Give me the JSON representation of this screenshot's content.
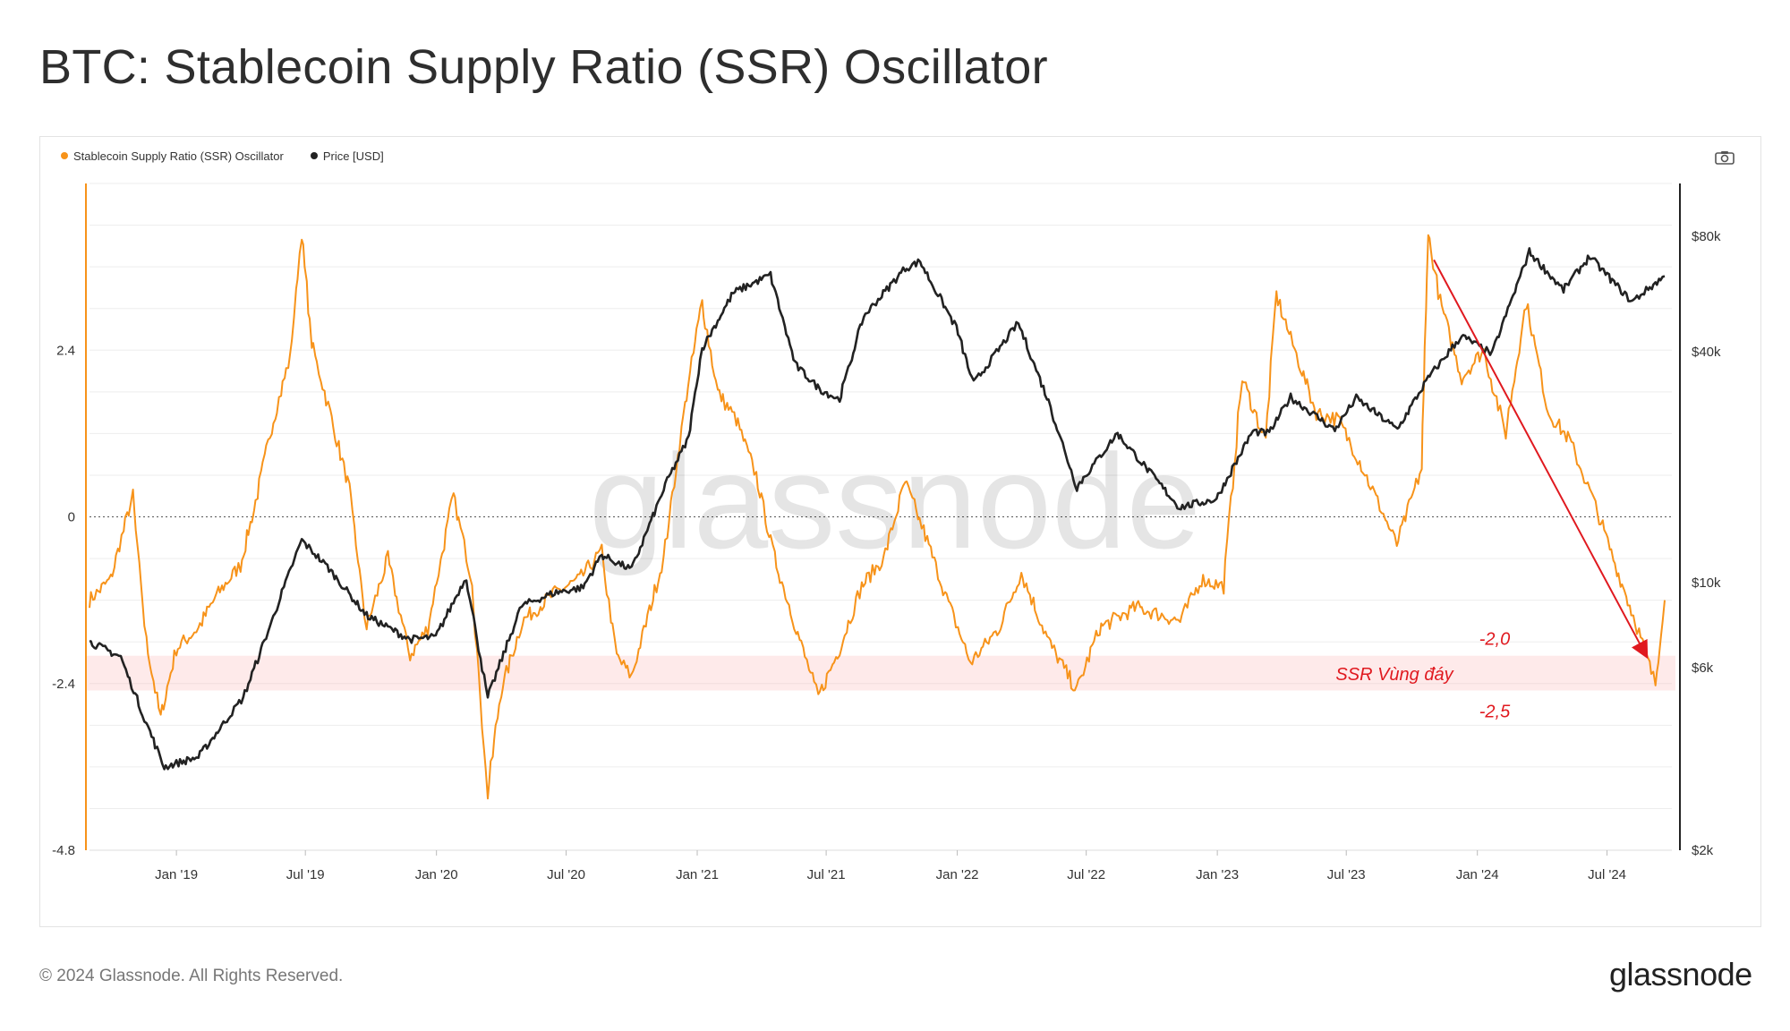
{
  "title": "BTC: Stablecoin Supply Ratio (SSR) Oscillator",
  "legend": [
    {
      "label": "Stablecoin Supply Ratio (SSR) Oscillator",
      "color": "#f7931a"
    },
    {
      "label": "Price [USD]",
      "color": "#222222"
    }
  ],
  "toolbar": {
    "camera_icon": "camera-icon"
  },
  "watermark": "glassnode",
  "footer": {
    "copyright": "© 2024 Glassnode. All Rights Reserved.",
    "brand": "glassnode"
  },
  "chart_data": {
    "type": "line",
    "x_range": [
      "2018-09-01",
      "2024-09-30"
    ],
    "x_ticks": [
      "Jan '19",
      "Jul '19",
      "Jan '20",
      "Jul '20",
      "Jan '21",
      "Jul '21",
      "Jan '22",
      "Jul '22",
      "Jan '23",
      "Jul '23",
      "Jan '24",
      "Jul '24"
    ],
    "y_left": {
      "ticks": [
        "2.4",
        "0",
        "-2.4",
        "-4.8"
      ],
      "range": [
        -4.8,
        4.8
      ]
    },
    "y_right": {
      "ticks": [
        "$80k",
        "$40k",
        "$10k",
        "$6k",
        "$2k"
      ],
      "scale": "log",
      "range": [
        2000,
        110000
      ]
    },
    "grid": true,
    "legend_position": "top-left",
    "series": [
      {
        "name": "Stablecoin Supply Ratio (SSR) Oscillator",
        "axis": "left",
        "color": "#f7931a",
        "points": [
          [
            "2018-09-01",
            -1.2
          ],
          [
            "2018-10-01",
            -0.9
          ],
          [
            "2018-11-01",
            0.3
          ],
          [
            "2018-11-20",
            -1.8
          ],
          [
            "2018-12-10",
            -2.9
          ],
          [
            "2019-01-01",
            -1.9
          ],
          [
            "2019-02-01",
            -1.6
          ],
          [
            "2019-03-01",
            -1.1
          ],
          [
            "2019-04-01",
            -0.7
          ],
          [
            "2019-04-20",
            0.1
          ],
          [
            "2019-05-15",
            1.3
          ],
          [
            "2019-06-10",
            2.3
          ],
          [
            "2019-06-26",
            4.1
          ],
          [
            "2019-07-10",
            2.5
          ],
          [
            "2019-08-05",
            1.5
          ],
          [
            "2019-09-01",
            0.4
          ],
          [
            "2019-09-25",
            -1.6
          ],
          [
            "2019-10-25",
            -0.6
          ],
          [
            "2019-11-25",
            -2.0
          ],
          [
            "2019-12-20",
            -1.6
          ],
          [
            "2020-01-25",
            0.3
          ],
          [
            "2020-02-20",
            -0.9
          ],
          [
            "2020-03-13",
            -4.0
          ],
          [
            "2020-04-01",
            -2.5
          ],
          [
            "2020-05-01",
            -1.5
          ],
          [
            "2020-06-15",
            -1.1
          ],
          [
            "2020-07-20",
            -0.9
          ],
          [
            "2020-08-20",
            -0.5
          ],
          [
            "2020-09-10",
            -2.0
          ],
          [
            "2020-10-01",
            -2.3
          ],
          [
            "2020-11-15",
            -0.6
          ],
          [
            "2020-12-15",
            1.6
          ],
          [
            "2021-01-08",
            3.1
          ],
          [
            "2021-01-30",
            1.8
          ],
          [
            "2021-02-25",
            1.4
          ],
          [
            "2021-03-25",
            0.6
          ],
          [
            "2021-04-20",
            -0.6
          ],
          [
            "2021-05-20",
            -1.6
          ],
          [
            "2021-06-20",
            -2.6
          ],
          [
            "2021-07-20",
            -1.9
          ],
          [
            "2021-08-20",
            -1.0
          ],
          [
            "2021-09-20",
            -0.6
          ],
          [
            "2021-10-20",
            0.5
          ],
          [
            "2021-11-15",
            -0.2
          ],
          [
            "2021-12-15",
            -1.1
          ],
          [
            "2022-01-20",
            -2.1
          ],
          [
            "2022-03-01",
            -1.6
          ],
          [
            "2022-04-01",
            -0.8
          ],
          [
            "2022-05-10",
            -1.8
          ],
          [
            "2022-06-18",
            -2.5
          ],
          [
            "2022-07-20",
            -1.6
          ],
          [
            "2022-09-10",
            -1.3
          ],
          [
            "2022-11-10",
            -1.5
          ],
          [
            "2022-12-10",
            -0.9
          ],
          [
            "2023-01-10",
            -1.0
          ],
          [
            "2023-02-05",
            2.0
          ],
          [
            "2023-03-10",
            1.1
          ],
          [
            "2023-03-25",
            3.2
          ],
          [
            "2023-04-20",
            2.4
          ],
          [
            "2023-05-20",
            1.5
          ],
          [
            "2023-06-20",
            1.4
          ],
          [
            "2023-07-20",
            0.8
          ],
          [
            "2023-08-20",
            0.1
          ],
          [
            "2023-09-10",
            -0.4
          ],
          [
            "2023-10-15",
            0.7
          ],
          [
            "2023-10-24",
            4.1
          ],
          [
            "2023-11-10",
            3.1
          ],
          [
            "2023-12-10",
            2.0
          ],
          [
            "2024-01-10",
            2.4
          ],
          [
            "2024-02-10",
            1.2
          ],
          [
            "2024-03-10",
            3.1
          ],
          [
            "2024-04-10",
            1.5
          ],
          [
            "2024-05-10",
            1.1
          ],
          [
            "2024-06-10",
            0.3
          ],
          [
            "2024-07-10",
            -0.6
          ],
          [
            "2024-08-10",
            -1.5
          ],
          [
            "2024-09-07",
            -2.4
          ],
          [
            "2024-09-20",
            -1.2
          ]
        ]
      },
      {
        "name": "Price [USD]",
        "axis": "right",
        "color": "#222222",
        "points": [
          [
            "2018-09-01",
            7000
          ],
          [
            "2018-10-15",
            6400
          ],
          [
            "2018-11-20",
            4300
          ],
          [
            "2018-12-15",
            3300
          ],
          [
            "2019-02-01",
            3500
          ],
          [
            "2019-04-05",
            5000
          ],
          [
            "2019-05-15",
            7900
          ],
          [
            "2019-06-26",
            12900
          ],
          [
            "2019-08-01",
            11000
          ],
          [
            "2019-09-25",
            8200
          ],
          [
            "2019-11-25",
            7100
          ],
          [
            "2019-12-31",
            7200
          ],
          [
            "2020-02-12",
            10300
          ],
          [
            "2020-03-13",
            5000
          ],
          [
            "2020-04-30",
            8700
          ],
          [
            "2020-06-15",
            9400
          ],
          [
            "2020-07-25",
            9700
          ],
          [
            "2020-08-20",
            11800
          ],
          [
            "2020-10-01",
            10800
          ],
          [
            "2020-11-20",
            18400
          ],
          [
            "2020-12-20",
            23800
          ],
          [
            "2021-01-08",
            40700
          ],
          [
            "2021-02-21",
            57000
          ],
          [
            "2021-04-14",
            63500
          ],
          [
            "2021-05-19",
            37000
          ],
          [
            "2021-06-22",
            32000
          ],
          [
            "2021-07-20",
            30000
          ],
          [
            "2021-08-23",
            49500
          ],
          [
            "2021-10-20",
            66000
          ],
          [
            "2021-11-10",
            68800
          ],
          [
            "2021-12-31",
            46300
          ],
          [
            "2022-01-24",
            33000
          ],
          [
            "2022-03-28",
            47500
          ],
          [
            "2022-05-12",
            28800
          ],
          [
            "2022-06-18",
            17700
          ],
          [
            "2022-08-14",
            24500
          ],
          [
            "2022-11-09",
            15700
          ],
          [
            "2022-12-31",
            16500
          ],
          [
            "2023-02-20",
            24800
          ],
          [
            "2023-03-15",
            24500
          ],
          [
            "2023-04-14",
            30500
          ],
          [
            "2023-06-15",
            25000
          ],
          [
            "2023-07-15",
            30300
          ],
          [
            "2023-09-11",
            25100
          ],
          [
            "2023-10-24",
            34000
          ],
          [
            "2023-12-10",
            44000
          ],
          [
            "2024-01-22",
            39500
          ],
          [
            "2024-03-14",
            73000
          ],
          [
            "2024-05-01",
            58000
          ],
          [
            "2024-06-07",
            71000
          ],
          [
            "2024-08-05",
            54000
          ],
          [
            "2024-09-20",
            63000
          ]
        ]
      }
    ],
    "annotations": {
      "zone_label": "SSR Vùng đáy",
      "zone_upper": "-2,0",
      "zone_lower": "-2,5",
      "zone_range": [
        -2.5,
        -2.0
      ],
      "arrow_from": [
        "2023-11-01",
        3.7
      ],
      "arrow_to": [
        "2024-08-25",
        -2.0
      ],
      "color": "#e0191f"
    }
  }
}
